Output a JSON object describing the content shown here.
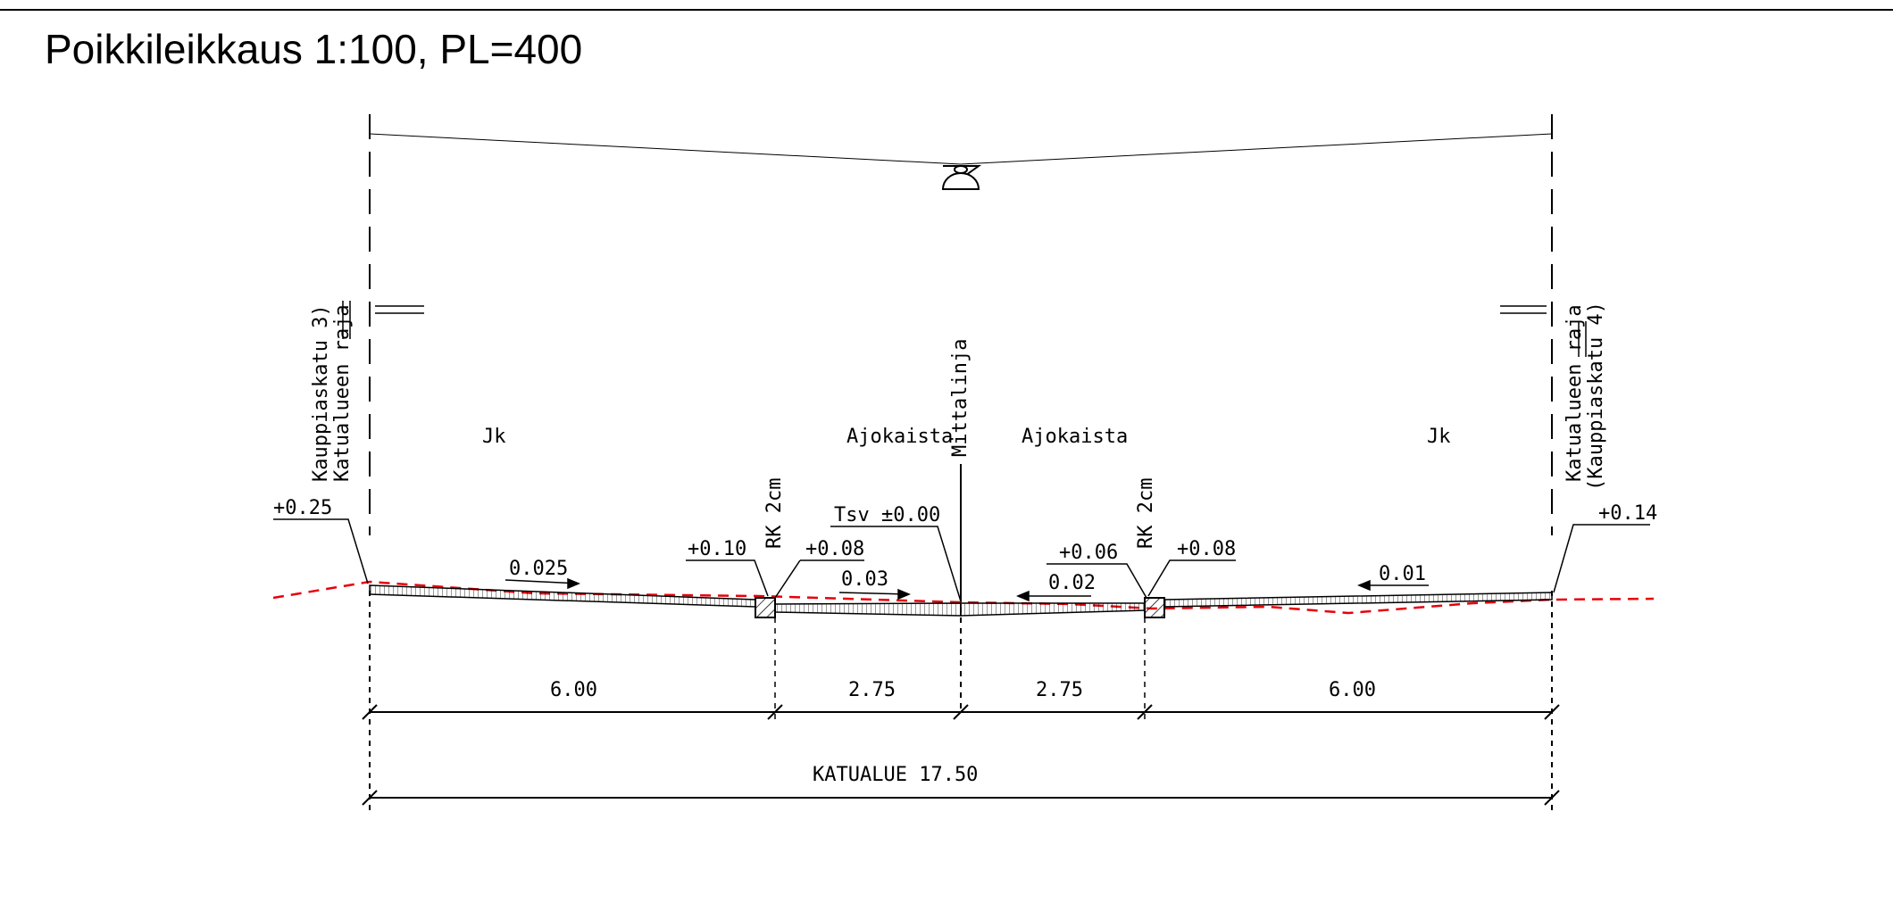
{
  "title": "Poikkileikkaus 1:100, PL=400",
  "left_boundary": {
    "line1": "Kauppiaskatu 3)",
    "line2": "Katualueen raja"
  },
  "right_boundary": {
    "line1": "Katualueen raja",
    "line2": "(Kauppiaskatu 4)"
  },
  "centerline_label": "Mittalinja",
  "zones": {
    "left_sidewalk": "Jk",
    "left_lane": "Ajokaista",
    "right_lane": "Ajokaista",
    "right_sidewalk": "Jk"
  },
  "curbs": {
    "left": "RK 2cm",
    "right": "RK 2cm"
  },
  "elevations": {
    "left_edge": "+0.25",
    "left_curb_top": "+0.10",
    "left_curb_bottom": "+0.08",
    "center": "Tsv ±0.00",
    "right_curb_bottom": "+0.06",
    "right_curb_top": "+0.08",
    "right_edge": "+0.14"
  },
  "slopes": {
    "left_sidewalk": "0.025",
    "left_lane": "0.03",
    "right_lane": "0.02",
    "right_sidewalk": "0.01"
  },
  "dimensions": {
    "seg1": "6.00",
    "seg2": "2.75",
    "seg3": "2.75",
    "seg4": "6.00",
    "total": "KATUALUE 17.50"
  },
  "colors": {
    "ink": "#000000",
    "existing_ground": "#e8000b"
  }
}
